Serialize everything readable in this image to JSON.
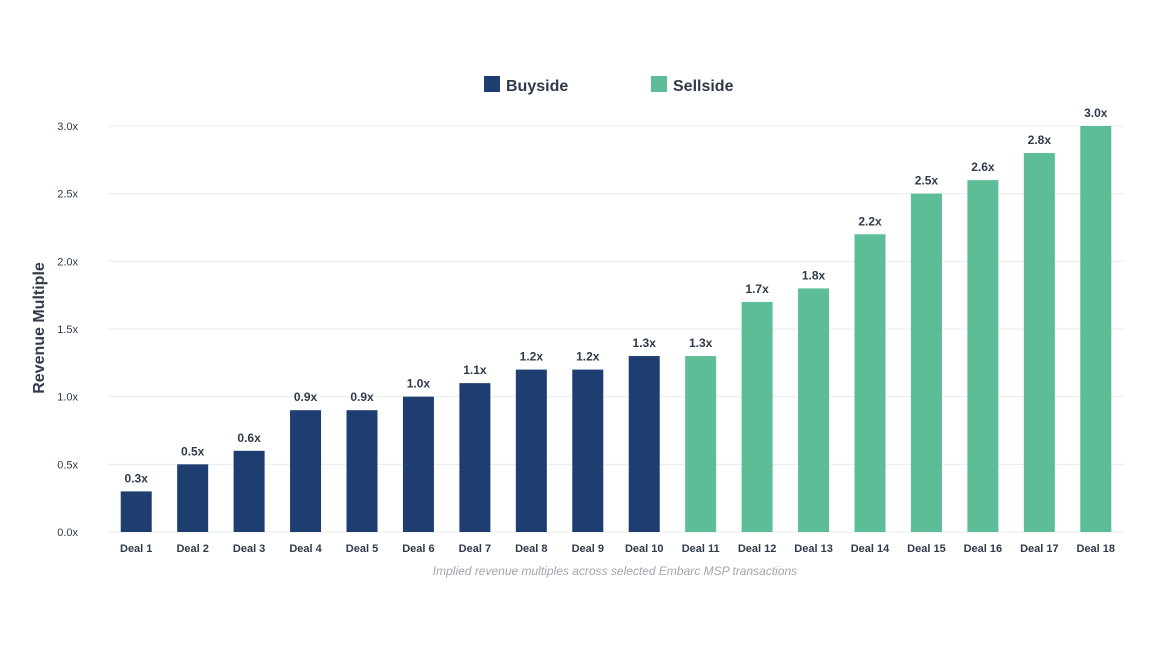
{
  "colors": {
    "buyside": "#1e3d70",
    "sellside": "#5cbd96",
    "text": "#2f3a4a",
    "grid": "#e8ebee",
    "caption": "#a0a6ad"
  },
  "chart_data": {
    "type": "bar",
    "categories": [
      "Deal 1",
      "Deal 2",
      "Deal 3",
      "Deal 4",
      "Deal 5",
      "Deal 6",
      "Deal 7",
      "Deal 8",
      "Deal 9",
      "Deal 10",
      "Deal 11",
      "Deal 12",
      "Deal 13",
      "Deal 14",
      "Deal 15",
      "Deal 16",
      "Deal 17",
      "Deal 18"
    ],
    "values": [
      0.3,
      0.5,
      0.6,
      0.9,
      0.9,
      1.0,
      1.1,
      1.2,
      1.2,
      1.3,
      1.3,
      1.7,
      1.8,
      2.2,
      2.5,
      2.6,
      2.8,
      3.0
    ],
    "value_labels": [
      "0.3x",
      "0.5x",
      "0.6x",
      "0.9x",
      "0.9x",
      "1.0x",
      "1.1x",
      "1.2x",
      "1.2x",
      "1.3x",
      "1.3x",
      "1.7x",
      "1.8x",
      "2.2x",
      "2.5x",
      "2.6x",
      "2.8x",
      "3.0x"
    ],
    "groups": [
      "Buyside",
      "Buyside",
      "Buyside",
      "Buyside",
      "Buyside",
      "Buyside",
      "Buyside",
      "Buyside",
      "Buyside",
      "Buyside",
      "Sellside",
      "Sellside",
      "Sellside",
      "Sellside",
      "Sellside",
      "Sellside",
      "Sellside",
      "Sellside"
    ],
    "legend": [
      {
        "name": "Buyside",
        "color": "#1e3d70"
      },
      {
        "name": "Sellside",
        "color": "#5cbd96"
      }
    ],
    "legend_position": "top-center",
    "ylabel": "Revenue Multiple",
    "xlabel": "",
    "ylim": [
      0,
      3.0
    ],
    "yticks": [
      0,
      0.5,
      1.0,
      1.5,
      2.0,
      2.5,
      3.0
    ],
    "ytick_labels": [
      "0.0x",
      "0.5x",
      "1.0x",
      "1.5x",
      "2.0x",
      "2.5x",
      "3.0x"
    ],
    "grid": true,
    "caption": "Implied revenue multiples across selected Embarc MSP transactions"
  }
}
